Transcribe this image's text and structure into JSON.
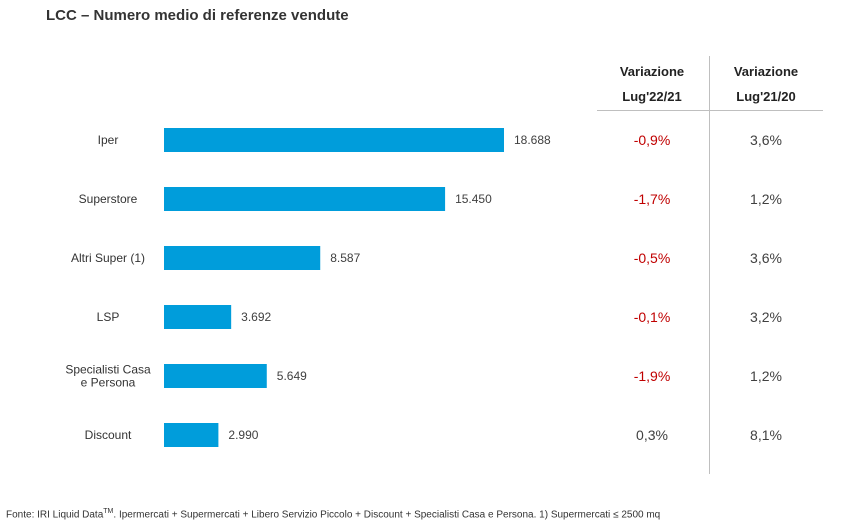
{
  "title": "LCC – Numero medio di referenze vendute",
  "table": {
    "headers": [
      {
        "line1": "Variazione",
        "line2": "Lug'22/21"
      },
      {
        "line1": "Variazione",
        "line2": "Lug'21/20"
      }
    ],
    "rows": [
      {
        "v1": "-0,9%",
        "v2": "3,6%"
      },
      {
        "v1": "-1,7%",
        "v2": "1,2%"
      },
      {
        "v1": "-0,5%",
        "v2": "3,6%"
      },
      {
        "v1": "-0,1%",
        "v2": "3,2%"
      },
      {
        "v1": "-1,9%",
        "v2": "1,2%"
      },
      {
        "v1": "0,3%",
        "v2": "8,1%"
      }
    ]
  },
  "footer": {
    "prefix": "Fonte: IRI Liquid Data",
    "tm": "TM",
    "suffix": ".  Ipermercati + Supermercati + Libero Servizio Piccolo + Discount + Specialisti Casa e Persona. 1) Supermercati ≤ 2500 mq"
  },
  "colors": {
    "bar": "#009ddb",
    "negative": "#c00000",
    "positive": "#404040"
  },
  "chart_data": {
    "type": "bar",
    "orientation": "horizontal",
    "title": "LCC – Numero medio di referenze vendute",
    "categories": [
      [
        "Iper"
      ],
      [
        "Superstore"
      ],
      [
        "Altri Super (1)"
      ],
      [
        "LSP"
      ],
      [
        "Specialisti Casa",
        "e Persona"
      ],
      [
        "Discount"
      ]
    ],
    "values": [
      18688,
      15450,
      8587,
      3692,
      5649,
      2990
    ],
    "value_labels": [
      "18.688",
      "15.450",
      "8.587",
      "3.692",
      "5.649",
      "2.990"
    ],
    "xlim": [
      0,
      25000
    ],
    "grid": false,
    "legend": "none"
  }
}
